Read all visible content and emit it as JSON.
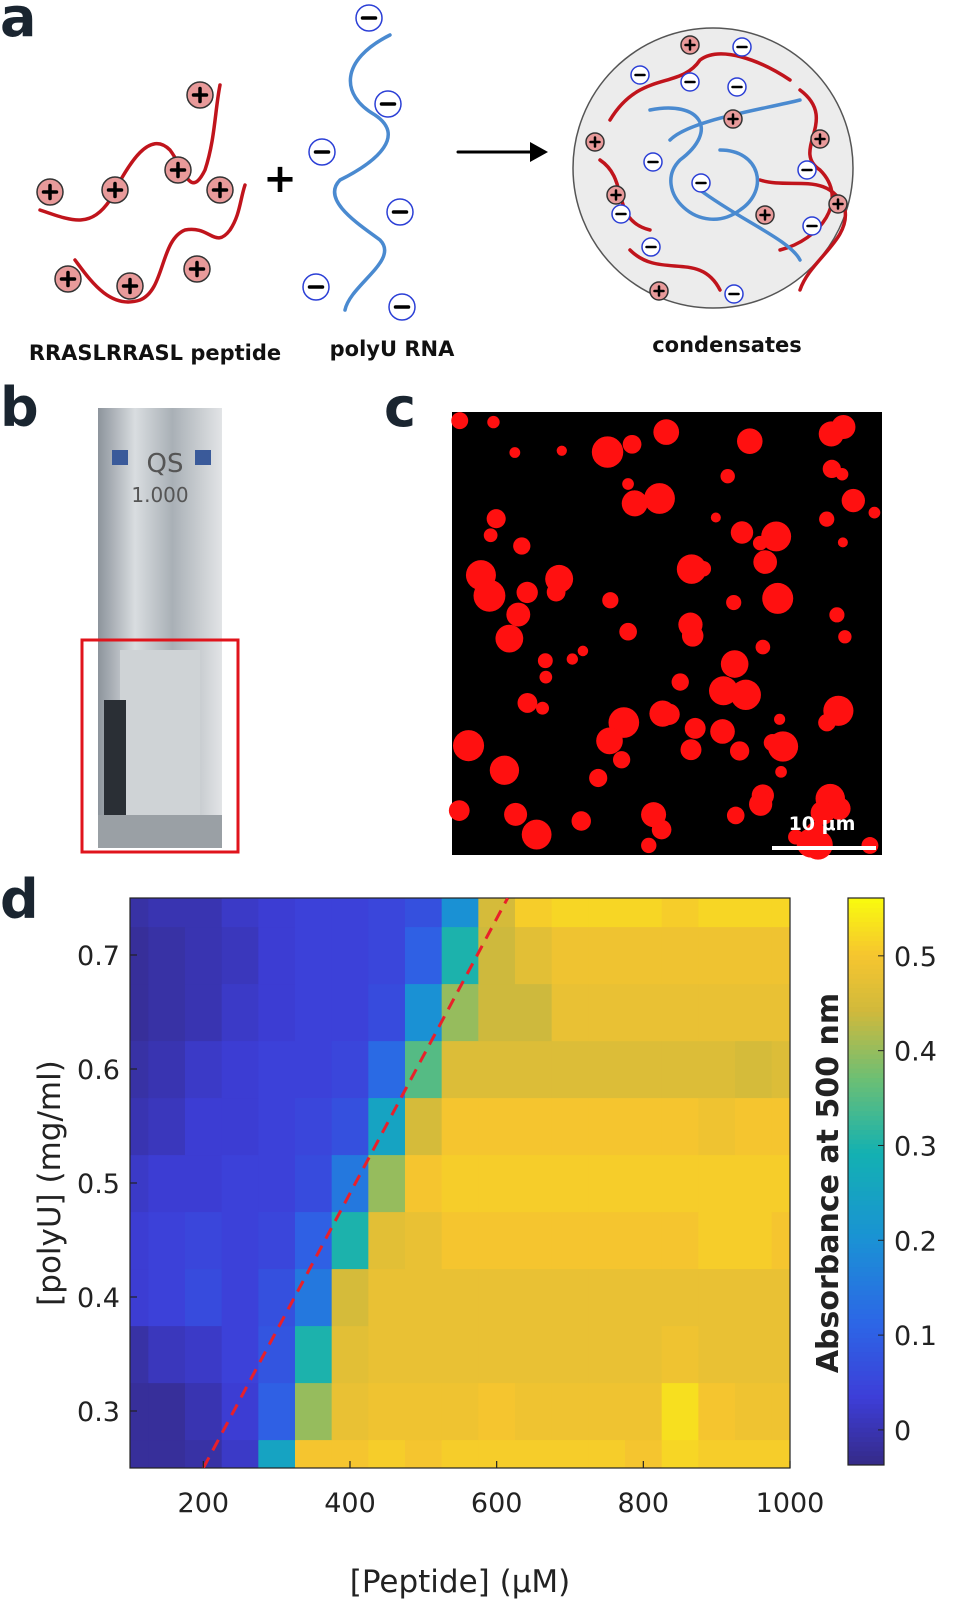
{
  "panel_labels": [
    "a",
    "b",
    "c",
    "d"
  ],
  "panel_a": {
    "peptide_label": "RRASLRRASL peptide",
    "plus_sign": "+",
    "rna_label": "polyU  RNA",
    "condensate_label": "condensates"
  },
  "panel_b": {
    "cuvette_text": [
      "QS",
      "1.000"
    ]
  },
  "panel_c": {
    "scale_bar_label": "10 μm"
  },
  "chart_data": {
    "type": "contour",
    "xlabel": "[Peptide] (μM)",
    "ylabel": "[polyU] (mg/ml)",
    "x": [
      100,
      150,
      200,
      250,
      300,
      350,
      400,
      450,
      500,
      550,
      600,
      650,
      700,
      750,
      800,
      850,
      900,
      950,
      1000
    ],
    "y": [
      0.25,
      0.3,
      0.35,
      0.4,
      0.45,
      0.5,
      0.55,
      0.6,
      0.65,
      0.7,
      0.75
    ],
    "z": [
      [
        -0.02,
        -0.02,
        -0.01,
        0.02,
        0.25,
        0.5,
        0.5,
        0.51,
        0.5,
        0.51,
        0.51,
        0.51,
        0.51,
        0.51,
        0.5,
        0.52,
        0.51,
        0.51,
        0.51
      ],
      [
        -0.02,
        -0.02,
        0.0,
        0.03,
        0.1,
        0.4,
        0.48,
        0.49,
        0.49,
        0.49,
        0.5,
        0.49,
        0.49,
        0.49,
        0.49,
        0.53,
        0.5,
        0.49,
        0.49
      ],
      [
        -0.01,
        0.01,
        0.02,
        0.04,
        0.08,
        0.3,
        0.47,
        0.48,
        0.48,
        0.48,
        0.48,
        0.48,
        0.48,
        0.48,
        0.48,
        0.49,
        0.48,
        0.48,
        0.48
      ],
      [
        0.03,
        0.04,
        0.06,
        0.04,
        0.07,
        0.15,
        0.45,
        0.48,
        0.48,
        0.48,
        0.48,
        0.48,
        0.48,
        0.48,
        0.48,
        0.48,
        0.48,
        0.48,
        0.48
      ],
      [
        0.03,
        0.04,
        0.05,
        0.04,
        0.05,
        0.1,
        0.3,
        0.47,
        0.48,
        0.5,
        0.5,
        0.5,
        0.5,
        0.5,
        0.5,
        0.5,
        0.51,
        0.51,
        0.5
      ],
      [
        0.02,
        0.03,
        0.03,
        0.04,
        0.04,
        0.06,
        0.15,
        0.4,
        0.5,
        0.51,
        0.51,
        0.51,
        0.51,
        0.51,
        0.51,
        0.51,
        0.51,
        0.51,
        0.51
      ],
      [
        0.0,
        0.01,
        0.03,
        0.03,
        0.04,
        0.05,
        0.07,
        0.25,
        0.45,
        0.5,
        0.5,
        0.5,
        0.5,
        0.5,
        0.5,
        0.5,
        0.49,
        0.5,
        0.5
      ],
      [
        -0.01,
        0.0,
        0.02,
        0.03,
        0.04,
        0.04,
        0.05,
        0.12,
        0.35,
        0.46,
        0.46,
        0.46,
        0.46,
        0.46,
        0.46,
        0.46,
        0.46,
        0.45,
        0.46
      ],
      [
        -0.02,
        -0.01,
        0.0,
        0.02,
        0.03,
        0.04,
        0.04,
        0.06,
        0.2,
        0.4,
        0.44,
        0.44,
        0.48,
        0.48,
        0.48,
        0.48,
        0.48,
        0.48,
        0.48
      ],
      [
        -0.02,
        -0.01,
        0.0,
        0.01,
        0.03,
        0.04,
        0.04,
        0.05,
        0.1,
        0.3,
        0.44,
        0.47,
        0.49,
        0.49,
        0.49,
        0.49,
        0.49,
        0.49,
        0.49
      ],
      [
        -0.01,
        0.0,
        0.0,
        0.02,
        0.03,
        0.04,
        0.04,
        0.05,
        0.07,
        0.2,
        0.45,
        0.51,
        0.52,
        0.52,
        0.52,
        0.51,
        0.52,
        0.52,
        0.52
      ]
    ],
    "xlim": [
      100,
      1000
    ],
    "ylim": [
      0.25,
      0.75
    ],
    "xticks": [
      200,
      400,
      600,
      800,
      1000
    ],
    "yticks": [
      0.3,
      0.4,
      0.5,
      0.6,
      0.7
    ],
    "colorbar": {
      "label": "Absorbance at 500 nm",
      "clim": [
        -0.037,
        0.561
      ],
      "ticks": [
        0,
        0.1,
        0.2,
        0.3,
        0.4,
        0.5
      ]
    },
    "boundary_line": {
      "x": [
        200,
        615
      ],
      "y": [
        0.25,
        0.75
      ],
      "color": "#e8202a"
    }
  }
}
